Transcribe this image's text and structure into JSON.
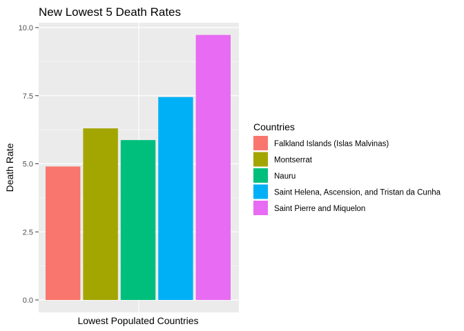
{
  "chart_data": {
    "type": "bar",
    "title": "New Lowest 5 Death Rates",
    "xlabel": "Lowest Populated Countries",
    "ylabel": "Death Rate",
    "ylim": [
      0,
      10.25
    ],
    "yticks": [
      0,
      2.5,
      5,
      7.5,
      10
    ],
    "ytick_labels": [
      "0.0",
      "2.5",
      "5.0",
      "7.5",
      "10.0"
    ],
    "grid": true,
    "legend_position": "right",
    "legend_title": "Countries",
    "categories": [
      "Falkland Islands (Islas Malvinas)",
      "Montserrat",
      "Nauru",
      "Saint Helena, Ascension, and Tristan da Cunha",
      "Saint Pierre and Miquelon"
    ],
    "values": [
      4.9,
      6.3,
      5.87,
      7.45,
      9.73
    ],
    "colors": [
      "#F8766D",
      "#A3A500",
      "#00BF7D",
      "#00B0F6",
      "#E76BF3"
    ]
  }
}
